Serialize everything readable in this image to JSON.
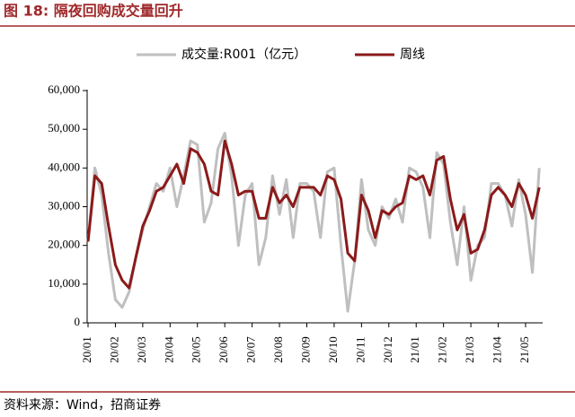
{
  "chart_data": {
    "type": "line",
    "title": "图 18:  隔夜回购成交量回升",
    "source": "资料来源：Wind，招商证券",
    "categories": [
      "20/01",
      null,
      null,
      null,
      "20/02",
      null,
      null,
      null,
      "20/03",
      null,
      null,
      null,
      "20/04",
      null,
      null,
      null,
      "20/05",
      null,
      null,
      null,
      "20/06",
      null,
      null,
      null,
      "20/07",
      null,
      null,
      null,
      "20/08",
      null,
      null,
      null,
      "20/09",
      null,
      null,
      null,
      "20/10",
      null,
      null,
      null,
      "20/11",
      null,
      null,
      null,
      "20/12",
      null,
      null,
      null,
      "21/01",
      null,
      null,
      null,
      "21/02",
      null,
      null,
      null,
      "21/03",
      null,
      null,
      null,
      "21/04",
      null,
      null,
      null,
      "21/05",
      null,
      null
    ],
    "series": [
      {
        "name": "成交量:R001（亿元）",
        "color": "#bfbfbf",
        "width": 3,
        "values": [
          21000,
          40000,
          33000,
          18000,
          6000,
          4000,
          8000,
          17000,
          24000,
          30000,
          36000,
          34000,
          40000,
          30000,
          38000,
          47000,
          46000,
          26000,
          31000,
          45000,
          49000,
          38000,
          20000,
          33000,
          36000,
          15000,
          22000,
          38000,
          28000,
          37000,
          22000,
          36000,
          36000,
          34000,
          22000,
          39000,
          40000,
          20000,
          3000,
          16000,
          37000,
          24000,
          20000,
          30000,
          27000,
          32000,
          26000,
          40000,
          39000,
          35000,
          22000,
          44000,
          41000,
          26000,
          15000,
          30000,
          11000,
          20000,
          22000,
          36000,
          36000,
          33000,
          25000,
          37000,
          28000,
          13000,
          40000
        ]
      },
      {
        "name": "周线",
        "color": "#8b1a1a",
        "width": 3,
        "values": [
          21000,
          38000,
          36000,
          25000,
          15000,
          11000,
          9000,
          17000,
          25000,
          29000,
          34000,
          35000,
          38000,
          41000,
          36000,
          45000,
          44000,
          41000,
          34000,
          33000,
          47000,
          41000,
          33000,
          34000,
          34000,
          27000,
          27000,
          35000,
          31000,
          33000,
          30000,
          35000,
          35000,
          35000,
          33000,
          38000,
          37000,
          32000,
          18000,
          16000,
          33000,
          29000,
          22000,
          29000,
          28000,
          30000,
          31000,
          38000,
          37000,
          38000,
          33000,
          42000,
          43000,
          32000,
          24000,
          28000,
          18000,
          19000,
          24000,
          33000,
          35000,
          33000,
          30000,
          36000,
          33000,
          27000,
          35000
        ]
      }
    ],
    "ylim": [
      0,
      60000
    ],
    "yticks": [
      0,
      {
        "value": 10000,
        "label": "10,000"
      },
      {
        "value": 20000,
        "label": "20,000"
      },
      {
        "value": 30000,
        "label": "30,000"
      },
      {
        "value": 40000,
        "label": "40,000"
      },
      {
        "value": 50000,
        "label": "50,000"
      },
      {
        "value": 60000,
        "label": "60,000"
      }
    ]
  }
}
